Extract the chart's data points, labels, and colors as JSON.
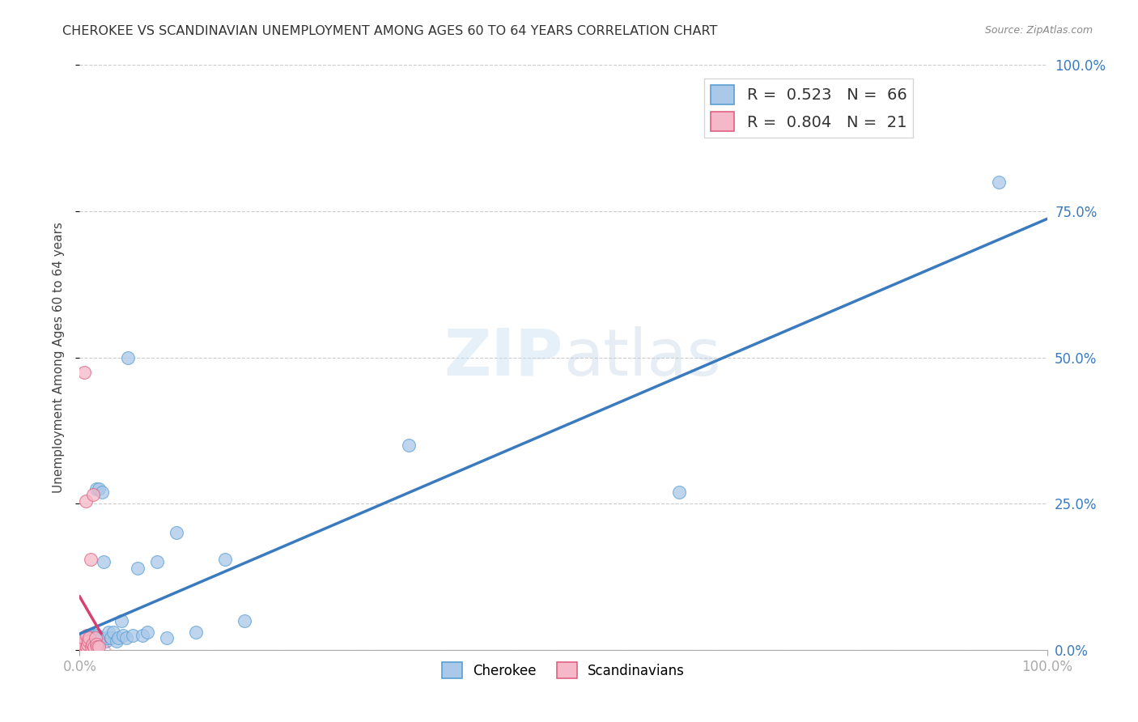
{
  "title": "CHEROKEE VS SCANDINAVIAN UNEMPLOYMENT AMONG AGES 60 TO 64 YEARS CORRELATION CHART",
  "source": "Source: ZipAtlas.com",
  "ylabel": "Unemployment Among Ages 60 to 64 years",
  "xlim": [
    0,
    1.0
  ],
  "ylim": [
    0,
    1.0
  ],
  "xtick_vals": [
    0.0,
    1.0
  ],
  "xtick_labels": [
    "0.0%",
    "100.0%"
  ],
  "ytick_vals": [
    0.0,
    0.25,
    0.5,
    0.75,
    1.0
  ],
  "right_ytick_labels": [
    "0.0%",
    "25.0%",
    "50.0%",
    "75.0%",
    "100.0%"
  ],
  "cherokee_fill": "#aac8e8",
  "cherokee_edge": "#5a9fd4",
  "scandinavian_fill": "#f5b8c8",
  "scandinavian_edge": "#e06080",
  "cherokee_line_color": "#3a7abf",
  "scandinavian_line_color": "#d94070",
  "legend_R_cherokee": "0.523",
  "legend_N_cherokee": "66",
  "legend_R_scandinavian": "0.804",
  "legend_N_scandinavian": "21",
  "cherokee_x": [
    0.001,
    0.002,
    0.002,
    0.003,
    0.003,
    0.004,
    0.004,
    0.005,
    0.005,
    0.005,
    0.006,
    0.006,
    0.007,
    0.007,
    0.007,
    0.008,
    0.008,
    0.008,
    0.009,
    0.009,
    0.01,
    0.01,
    0.01,
    0.011,
    0.011,
    0.012,
    0.012,
    0.013,
    0.013,
    0.014,
    0.015,
    0.015,
    0.016,
    0.017,
    0.018,
    0.018,
    0.019,
    0.02,
    0.021,
    0.022,
    0.023,
    0.025,
    0.027,
    0.028,
    0.03,
    0.032,
    0.035,
    0.038,
    0.04,
    0.043,
    0.045,
    0.048,
    0.05,
    0.055,
    0.06,
    0.065,
    0.07,
    0.08,
    0.09,
    0.1,
    0.12,
    0.15,
    0.17,
    0.34,
    0.62,
    0.95
  ],
  "cherokee_y": [
    0.01,
    0.005,
    0.015,
    0.008,
    0.012,
    0.005,
    0.018,
    0.01,
    0.015,
    0.008,
    0.005,
    0.012,
    0.01,
    0.015,
    0.008,
    0.02,
    0.01,
    0.005,
    0.015,
    0.008,
    0.01,
    0.02,
    0.005,
    0.025,
    0.01,
    0.015,
    0.008,
    0.012,
    0.02,
    0.025,
    0.01,
    0.015,
    0.02,
    0.275,
    0.02,
    0.025,
    0.01,
    0.275,
    0.015,
    0.02,
    0.27,
    0.15,
    0.015,
    0.02,
    0.03,
    0.02,
    0.03,
    0.015,
    0.02,
    0.05,
    0.025,
    0.02,
    0.5,
    0.025,
    0.14,
    0.025,
    0.03,
    0.15,
    0.02,
    0.2,
    0.03,
    0.155,
    0.05,
    0.35,
    0.27,
    0.8
  ],
  "scandinavian_x": [
    0.001,
    0.002,
    0.003,
    0.004,
    0.004,
    0.005,
    0.006,
    0.007,
    0.007,
    0.008,
    0.009,
    0.01,
    0.011,
    0.012,
    0.013,
    0.014,
    0.015,
    0.016,
    0.017,
    0.018,
    0.02
  ],
  "scandinavian_y": [
    0.005,
    0.01,
    0.005,
    0.01,
    0.02,
    0.475,
    0.255,
    0.005,
    0.025,
    0.01,
    0.015,
    0.02,
    0.155,
    0.005,
    0.01,
    0.265,
    0.005,
    0.02,
    0.01,
    0.005,
    0.005
  ],
  "cherokee_trendline": [
    0.0,
    1.0,
    0.025,
    0.4
  ],
  "scandinavian_trendline_solid": [
    0.0,
    0.022,
    0.0,
    0.7
  ],
  "scandinavian_trendline_dash": [
    0.022,
    0.03
  ]
}
